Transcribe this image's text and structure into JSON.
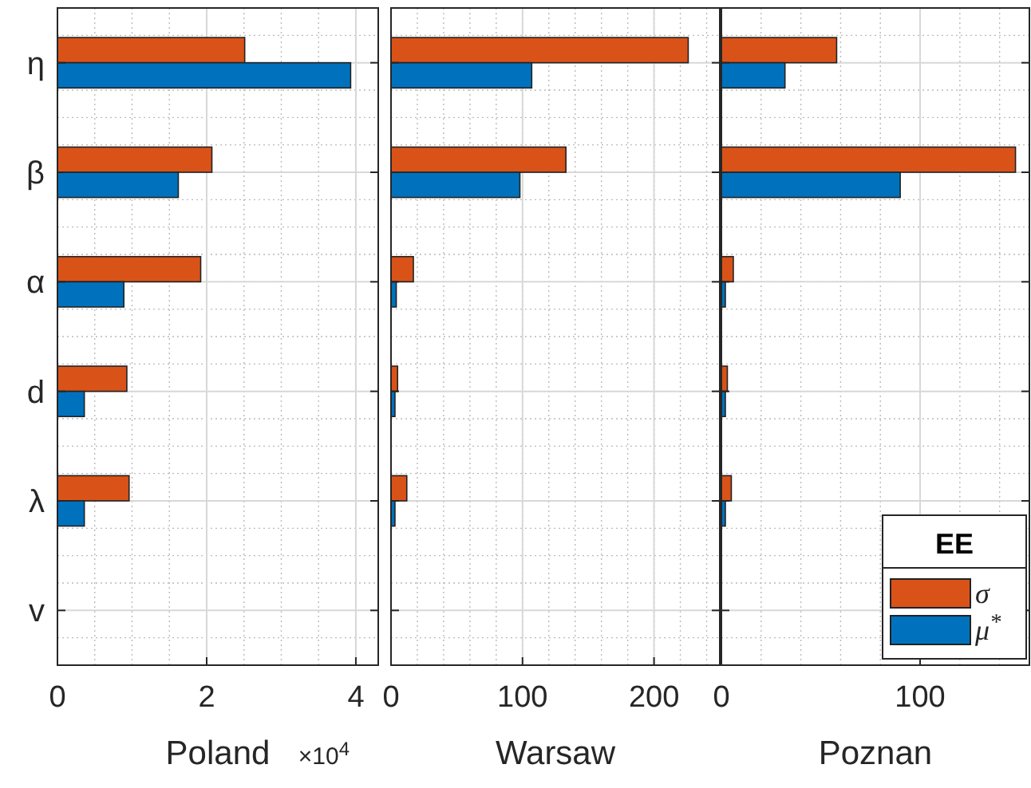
{
  "chart_data": [
    {
      "type": "bar",
      "orientation": "horizontal",
      "categories": [
        "η",
        "β",
        "α",
        "d",
        "λ",
        "v"
      ],
      "xlabel": "Poland",
      "annotations": [
        "×10$^{4}$"
      ],
      "xlim": [
        0,
        4.3
      ],
      "xticks": [
        0,
        2,
        4
      ],
      "grid": true,
      "legend": false,
      "series": [
        {
          "color": "#d95319",
          "values": [
            2.51,
            2.07,
            1.92,
            0.93,
            0.96,
            0
          ]
        },
        {
          "color": "#0072bd",
          "values": [
            3.93,
            1.62,
            0.89,
            0.36,
            0.36,
            0
          ]
        }
      ]
    },
    {
      "type": "bar",
      "orientation": "horizontal",
      "categories": [
        null,
        null,
        null,
        null,
        null,
        null
      ],
      "xlabel": "Warsaw",
      "xlim": [
        0,
        250
      ],
      "xticks": [
        0,
        100,
        200
      ],
      "grid": true,
      "legend": false,
      "tick_labels": "x",
      "series": [
        {
          "color": "#d95319",
          "values": [
            226,
            133,
            17,
            5,
            12,
            0
          ]
        },
        {
          "color": "#0072bd",
          "values": [
            107,
            98,
            4,
            3,
            3,
            0
          ]
        }
      ]
    },
    {
      "type": "bar",
      "orientation": "horizontal",
      "categories": [
        null,
        null,
        null,
        null,
        null,
        null
      ],
      "xlabel": "Poznan",
      "xlim": [
        0,
        155
      ],
      "xticks": [
        0,
        100
      ],
      "grid": true,
      "legend": "bottom right",
      "legend_title": "EE",
      "tick_labels": "x",
      "series": [
        {
          "name": "σ",
          "color": "#d95319",
          "values": [
            58,
            148,
            6,
            3,
            5,
            0
          ]
        },
        {
          "name": "μ$^{*}$",
          "color": "#0072bd",
          "values": [
            32,
            90,
            2,
            2,
            2,
            0
          ]
        }
      ]
    }
  ]
}
